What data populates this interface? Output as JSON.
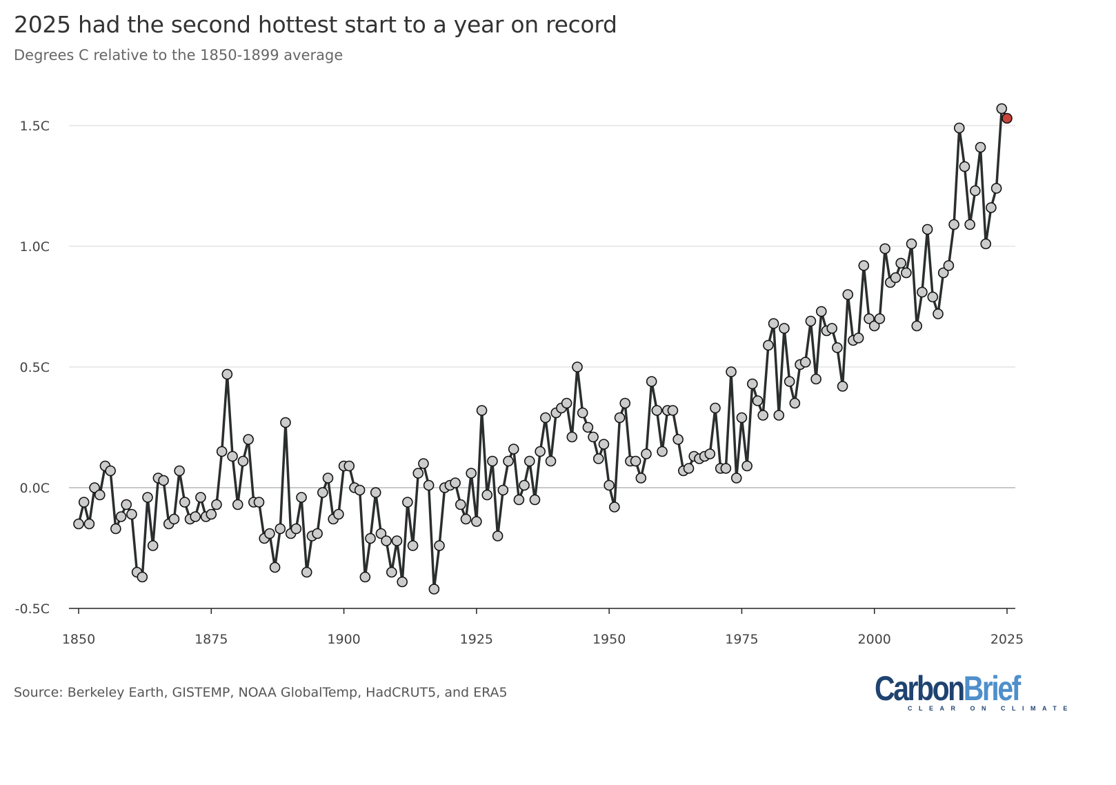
{
  "header": {
    "title": "2025 had the second hottest start to a year on record",
    "subtitle": "Degrees C relative to the 1850-1899 average"
  },
  "footer": {
    "source": "Source: Berkeley Earth, GISTEMP, NOAA GlobalTemp, HadCRUT5, and ERA5",
    "logo_text": "CarbonBrief",
    "logo_part1": "Carbon",
    "logo_part2": "Brief",
    "logo_tagline": "CLEAR ON CLIMATE"
  },
  "colors": {
    "line": "#2b2e2e",
    "marker": "#cccccc",
    "highlight": "#c9443a",
    "grid": "#e3e3e3",
    "zero": "#c8c8c8",
    "logo_dark": "#1f4370",
    "logo_light": "#4f8fcb"
  },
  "chart_data": {
    "type": "line",
    "title": "2025 had the second hottest start to a year on record",
    "subtitle": "Degrees C relative to the 1850-1899 average",
    "xlabel": "",
    "ylabel": "",
    "xlim": [
      1850,
      2025
    ],
    "ylim": [
      -0.5,
      1.6
    ],
    "x_ticks": [
      1850,
      1875,
      1900,
      1925,
      1950,
      1975,
      2000,
      2025
    ],
    "x_tick_labels": [
      "1850",
      "1875",
      "1900",
      "1925",
      "1950",
      "1975",
      "2000",
      "2025"
    ],
    "y_ticks": [
      -0.5,
      0,
      0.5,
      1.0,
      1.5
    ],
    "y_tick_labels": [
      "-0.5C",
      "0.0C",
      "0.5C",
      "1.0C",
      "1.5C"
    ],
    "grid": "horizontal",
    "highlight_year": 2025,
    "x": [
      1850,
      1851,
      1852,
      1853,
      1854,
      1855,
      1856,
      1857,
      1858,
      1859,
      1860,
      1861,
      1862,
      1863,
      1864,
      1865,
      1866,
      1867,
      1868,
      1869,
      1870,
      1871,
      1872,
      1873,
      1874,
      1875,
      1876,
      1877,
      1878,
      1879,
      1880,
      1881,
      1882,
      1883,
      1884,
      1885,
      1886,
      1887,
      1888,
      1889,
      1890,
      1891,
      1892,
      1893,
      1894,
      1895,
      1896,
      1897,
      1898,
      1899,
      1900,
      1901,
      1902,
      1903,
      1904,
      1905,
      1906,
      1907,
      1908,
      1909,
      1910,
      1911,
      1912,
      1913,
      1914,
      1915,
      1916,
      1917,
      1918,
      1919,
      1920,
      1921,
      1922,
      1923,
      1924,
      1925,
      1926,
      1927,
      1928,
      1929,
      1930,
      1931,
      1932,
      1933,
      1934,
      1935,
      1936,
      1937,
      1938,
      1939,
      1940,
      1941,
      1942,
      1943,
      1944,
      1945,
      1946,
      1947,
      1948,
      1949,
      1950,
      1951,
      1952,
      1953,
      1954,
      1955,
      1956,
      1957,
      1958,
      1959,
      1960,
      1961,
      1962,
      1963,
      1964,
      1965,
      1966,
      1967,
      1968,
      1969,
      1970,
      1971,
      1972,
      1973,
      1974,
      1975,
      1976,
      1977,
      1978,
      1979,
      1980,
      1981,
      1982,
      1983,
      1984,
      1985,
      1986,
      1987,
      1988,
      1989,
      1990,
      1991,
      1992,
      1993,
      1994,
      1995,
      1996,
      1997,
      1998,
      1999,
      2000,
      2001,
      2002,
      2003,
      2004,
      2005,
      2006,
      2007,
      2008,
      2009,
      2010,
      2011,
      2012,
      2013,
      2014,
      2015,
      2016,
      2017,
      2018,
      2019,
      2020,
      2021,
      2022,
      2023,
      2024,
      2025
    ],
    "y": [
      -0.15,
      -0.06,
      -0.15,
      0.0,
      -0.03,
      0.09,
      0.07,
      -0.17,
      -0.12,
      -0.07,
      -0.11,
      -0.35,
      -0.37,
      -0.04,
      -0.24,
      0.04,
      0.03,
      -0.15,
      -0.13,
      0.07,
      -0.06,
      -0.13,
      -0.12,
      -0.04,
      -0.12,
      -0.11,
      -0.07,
      0.15,
      0.47,
      0.13,
      -0.07,
      0.11,
      0.2,
      -0.06,
      -0.06,
      -0.21,
      -0.19,
      -0.33,
      -0.17,
      0.27,
      -0.19,
      -0.17,
      -0.04,
      -0.35,
      -0.2,
      -0.19,
      -0.02,
      0.04,
      -0.13,
      -0.11,
      0.09,
      0.09,
      0.0,
      -0.01,
      -0.37,
      -0.21,
      -0.02,
      -0.19,
      -0.22,
      -0.35,
      -0.22,
      -0.39,
      -0.06,
      -0.24,
      0.06,
      0.1,
      0.01,
      -0.42,
      -0.24,
      0.0,
      0.01,
      0.02,
      -0.07,
      -0.13,
      0.06,
      -0.14,
      0.32,
      -0.03,
      0.11,
      -0.2,
      -0.01,
      0.11,
      0.16,
      -0.05,
      0.01,
      0.11,
      -0.05,
      0.15,
      0.29,
      0.11,
      0.31,
      0.33,
      0.35,
      0.21,
      0.5,
      0.31,
      0.25,
      0.21,
      0.12,
      0.18,
      0.01,
      -0.08,
      0.29,
      0.35,
      0.11,
      0.11,
      0.04,
      0.14,
      0.44,
      0.32,
      0.15,
      0.32,
      0.32,
      0.2,
      0.07,
      0.08,
      0.13,
      0.12,
      0.13,
      0.14,
      0.33,
      0.08,
      0.08,
      0.48,
      0.04,
      0.29,
      0.09,
      0.43,
      0.36,
      0.3,
      0.59,
      0.68,
      0.3,
      0.66,
      0.44,
      0.35,
      0.51,
      0.52,
      0.69,
      0.45,
      0.73,
      0.65,
      0.66,
      0.58,
      0.42,
      0.8,
      0.61,
      0.62,
      0.92,
      0.7,
      0.67,
      0.7,
      0.99,
      0.85,
      0.87,
      0.93,
      0.89,
      1.01,
      0.67,
      0.81,
      1.07,
      0.79,
      0.72,
      0.89,
      0.92,
      1.09,
      1.49,
      1.33,
      1.09,
      1.23,
      1.41,
      1.01,
      1.16,
      1.24,
      1.57,
      1.53
    ]
  }
}
